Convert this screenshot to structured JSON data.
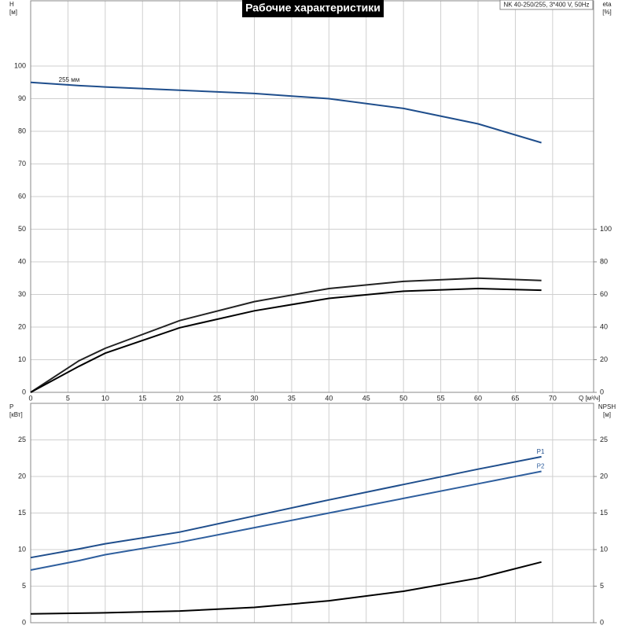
{
  "chart_data": [
    {
      "type": "line",
      "title": "Рабочие характеристики",
      "subtitle": "NK 40-250/255, 3*400 V, 50Hz",
      "y_label": [
        "H",
        "[м]"
      ],
      "y2_label": [
        "eta",
        "[%]"
      ],
      "x_label": "Q [м³/ч]",
      "x": [
        0,
        6.5,
        10,
        20,
        30,
        40,
        50,
        60,
        68.5
      ],
      "xlim": [
        0,
        75.5
      ],
      "xticks": [
        0,
        5,
        10,
        15,
        20,
        25,
        30,
        35,
        40,
        45,
        50,
        55,
        60,
        65,
        70
      ],
      "ylim": [
        0,
        120
      ],
      "yticks": [
        0,
        10,
        20,
        30,
        40,
        50,
        60,
        70,
        80,
        90,
        100
      ],
      "y2lim": [
        0,
        240
      ],
      "y2ticks": [
        0,
        20,
        40,
        60,
        80,
        100
      ],
      "grid": true,
      "series": [
        {
          "name": "255 мм",
          "color": "#1f4e8c",
          "values": [
            95,
            94,
            93.6,
            92.6,
            91.6,
            90,
            87,
            82.3,
            76.5
          ]
        },
        {
          "color": "#222222",
          "axis": "y2",
          "values": [
            0,
            19.4,
            27,
            44,
            55.6,
            63.6,
            68,
            70,
            68.6
          ]
        },
        {
          "color": "#000000",
          "axis": "y2",
          "values": [
            0,
            16,
            24,
            39.6,
            50,
            57.6,
            62,
            63.6,
            62.6
          ]
        }
      ]
    },
    {
      "type": "line",
      "y_label": [
        "P",
        "[кВт]"
      ],
      "y2_label": [
        "NPSH",
        "[м]"
      ],
      "x": [
        0,
        6.5,
        10,
        20,
        30,
        40,
        50,
        60,
        68.5
      ],
      "xlim": [
        0,
        75.5
      ],
      "xticks": [
        0,
        5,
        10,
        15,
        20,
        25,
        30,
        35,
        40,
        45,
        50,
        55,
        60,
        65,
        70
      ],
      "ylim": [
        0,
        30
      ],
      "yticks": [
        0,
        5,
        10,
        15,
        20,
        25
      ],
      "y2lim": [
        0,
        30
      ],
      "y2ticks": [
        0,
        5,
        10,
        15,
        20,
        25
      ],
      "grid": true,
      "series": [
        {
          "name": "P1",
          "color": "#1f4e8c",
          "values": [
            8.9,
            10.1,
            10.8,
            12.4,
            14.6,
            16.8,
            18.9,
            21,
            22.7
          ]
        },
        {
          "name": "P2",
          "color": "#2f5f9e",
          "values": [
            7.2,
            8.5,
            9.3,
            11,
            13,
            15,
            17,
            19,
            20.7
          ]
        },
        {
          "color": "#000000",
          "axis": "y2",
          "values": [
            1.2,
            1.3,
            1.35,
            1.6,
            2.1,
            3.0,
            4.3,
            6.1,
            8.3
          ]
        }
      ]
    }
  ]
}
